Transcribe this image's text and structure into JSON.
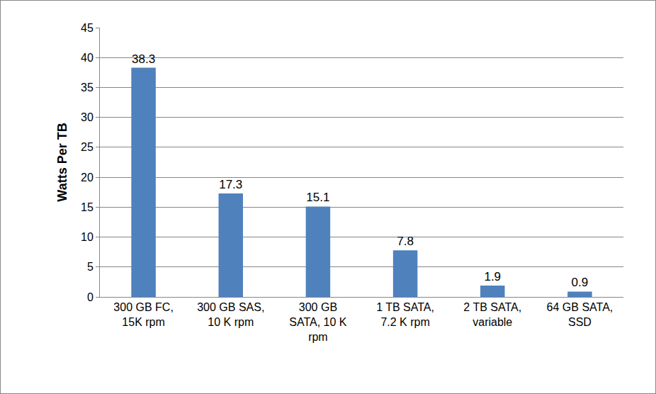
{
  "chart_data": {
    "type": "bar",
    "categories": [
      "300 GB FC, 15K rpm",
      "300 GB SAS, 10 K rpm",
      "300 GB SATA, 10 K rpm",
      "1 TB SATA, 7.2 K rpm",
      "2 TB SATA, variable",
      "64 GB SATA, SSD"
    ],
    "values": [
      38.3,
      17.3,
      15.1,
      7.8,
      1.9,
      0.9
    ],
    "color": "#4f81bd",
    "y_label": "Watts Per TB",
    "ylim": [
      0,
      45
    ],
    "yticks": [
      0,
      5,
      10,
      15,
      20,
      25,
      30,
      35,
      40,
      45
    ],
    "grid": true,
    "data_labels": true
  }
}
